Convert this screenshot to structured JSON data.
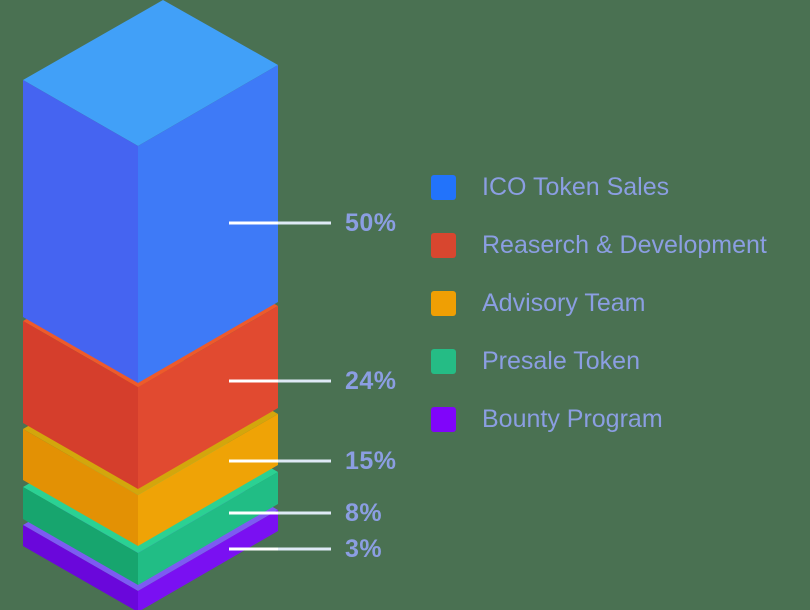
{
  "page": {
    "background_color": "#4A7152",
    "text_color": "#8B9EE2"
  },
  "leader_lines": {
    "inner_color": "#FFFFFF",
    "outer_color": "#DFE9F6"
  },
  "chart_data": {
    "type": "bar",
    "variant": "isometric-3d-exploded-stacked-column",
    "title": "",
    "unit": "%",
    "legend_position": "right",
    "categories": [
      "ICO Token Sales",
      "Reaserch & Development",
      "Advisory Team",
      "Presale Token",
      "Bounty Program"
    ],
    "values": [
      50,
      24,
      15,
      8,
      3
    ],
    "series": [
      {
        "label": "ICO Token Sales",
        "value": 50,
        "value_label": "50%",
        "legend_color": "#2273FB",
        "face_top": "#41A0F8",
        "face_left": "#4564F1",
        "face_right": "#3E7AF7"
      },
      {
        "label": "Reaserch & Development",
        "value": 24,
        "value_label": "24%",
        "legend_color": "#D8462F",
        "face_top": "#EE5A2B",
        "face_left": "#D53E2C",
        "face_right": "#E14A30"
      },
      {
        "label": "Advisory Team",
        "value": 15,
        "value_label": "15%",
        "legend_color": "#EF9F04",
        "face_top": "#D3A60C",
        "face_left": "#E39104",
        "face_right": "#EFA306"
      },
      {
        "label": "Presale Token",
        "value": 8,
        "value_label": "8%",
        "legend_color": "#25BC85",
        "face_top": "#2BD193",
        "face_left": "#17A56E",
        "face_right": "#21BD85"
      },
      {
        "label": "Bounty Program",
        "value": 3,
        "value_label": "3%",
        "legend_color": "#8005FA",
        "face_top": "#7D5BF2",
        "face_left": "#6A07DB",
        "face_right": "#7A10F2"
      }
    ]
  }
}
